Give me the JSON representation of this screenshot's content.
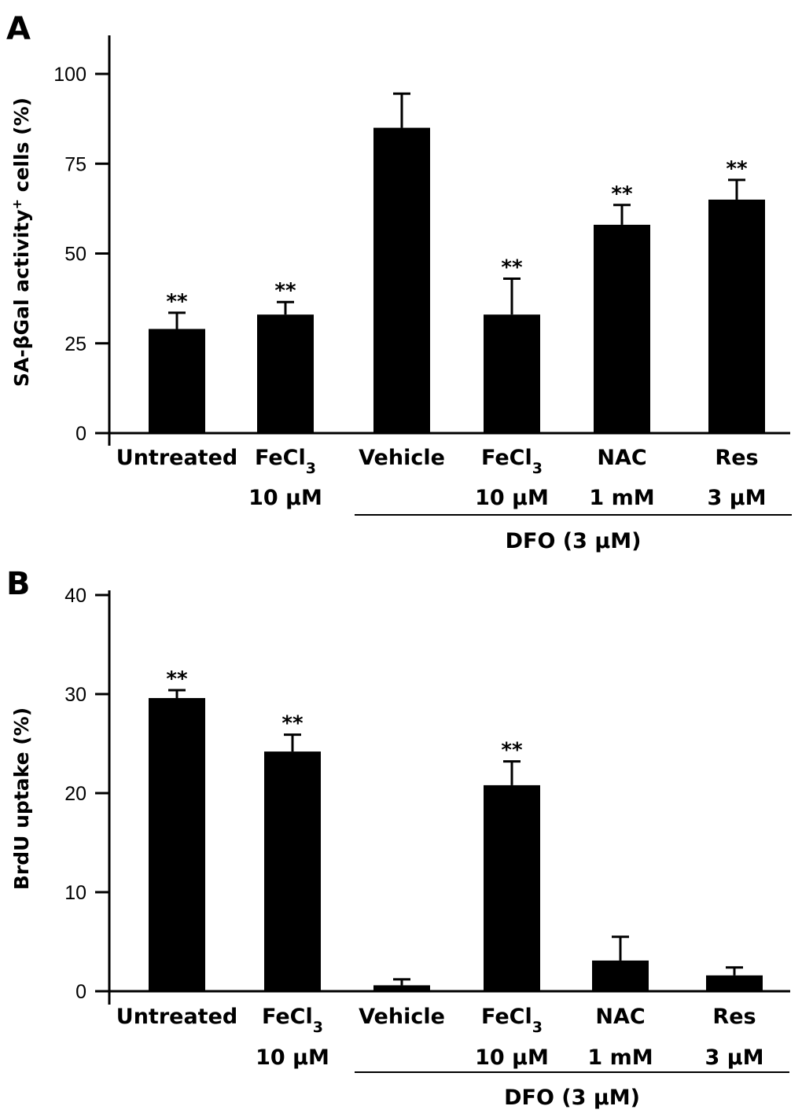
{
  "chart_data": [
    {
      "type": "bar",
      "panel": "A",
      "ylabel": "SA-βGal activity",
      "ylabel_sup": "+",
      "ylabel_tail": " cells (%)",
      "ylim": [
        0,
        110
      ],
      "yticks": [
        0,
        25,
        50,
        75,
        100
      ],
      "categories": [
        {
          "line1": "Untreated",
          "line2": ""
        },
        {
          "line1": "FeCl",
          "sub": "3",
          "line2": "10 μM"
        },
        {
          "line1": "Vehicle",
          "line2": ""
        },
        {
          "line1": "FeCl",
          "sub": "3",
          "line2": "10 μM"
        },
        {
          "line1": "NAC",
          "line2": "1 mM"
        },
        {
          "line1": "Res",
          "line2": "3 μM"
        }
      ],
      "values": [
        29,
        33,
        85,
        33,
        58,
        65
      ],
      "errors": [
        4.5,
        3.5,
        9.5,
        10,
        5.5,
        5.5
      ],
      "significance": [
        "**",
        "**",
        "",
        "**",
        "**",
        "**"
      ],
      "group_label": "DFO (3 μM)",
      "group_span": [
        2,
        5
      ]
    },
    {
      "type": "bar",
      "panel": "B",
      "ylabel": "BrdU uptake (%)",
      "ylim": [
        0,
        40
      ],
      "yticks": [
        0,
        10,
        20,
        30,
        40
      ],
      "categories": [
        {
          "line1": "Untreated",
          "line2": ""
        },
        {
          "line1": "FeCl",
          "sub": "3",
          "line2": "10 μM"
        },
        {
          "line1": "Vehicle",
          "line2": ""
        },
        {
          "line1": "FeCl",
          "sub": "3",
          "line2": "10 μM"
        },
        {
          "line1": "NAC",
          "line2": "1 mM"
        },
        {
          "line1": "Res",
          "line2": "3 μM"
        }
      ],
      "values": [
        29.6,
        24.2,
        0.6,
        20.8,
        3.1,
        1.6
      ],
      "errors": [
        0.8,
        1.7,
        0.6,
        2.4,
        2.4,
        0.8
      ],
      "significance": [
        "**",
        "**",
        "",
        "**",
        "",
        ""
      ],
      "group_label": "DFO (3 μM)",
      "group_span": [
        2,
        5
      ]
    }
  ]
}
